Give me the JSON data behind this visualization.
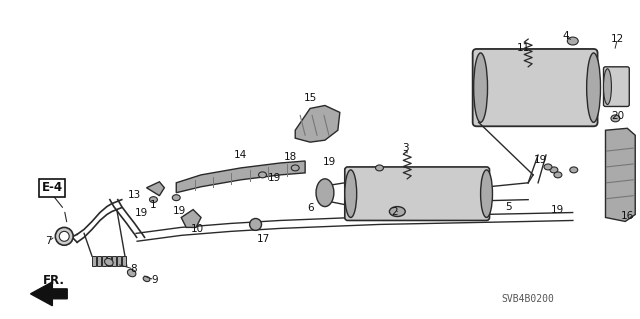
{
  "bg_color": "#ffffff",
  "line_color": "#2a2a2a",
  "diagram_code": "SVB4B0200",
  "gray_light": "#cccccc",
  "gray_mid": "#aaaaaa",
  "gray_dark": "#777777"
}
